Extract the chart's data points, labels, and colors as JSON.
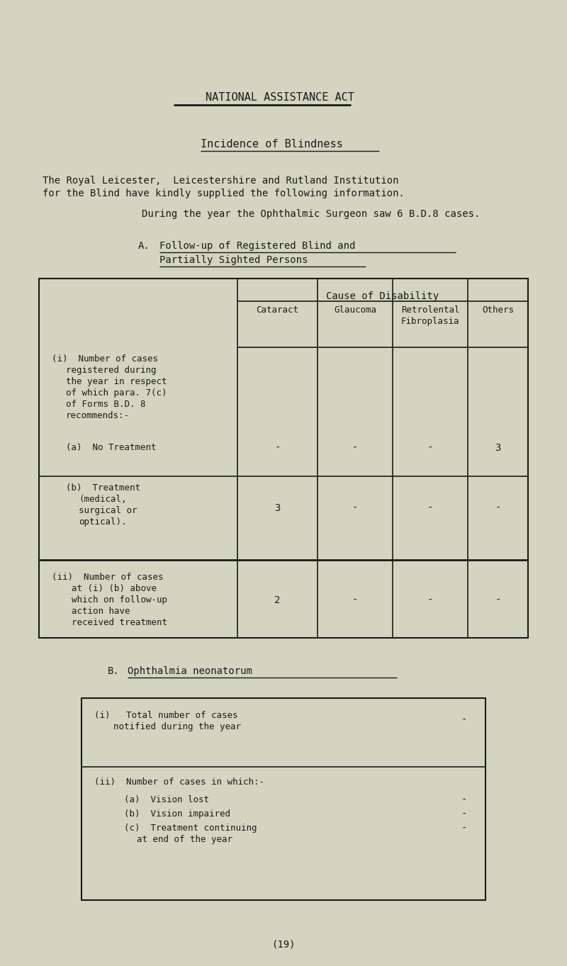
{
  "bg_color": "#d4d5c0",
  "text_color": "#1a1a1a",
  "title1": "NATIONAL ASSISTANCE ACT",
  "title2": "Incidence of Blindness",
  "para1_line1": "The Royal Leicester,  Leicestershire and Rutland Institution",
  "para1_line2": "for the Blind have kindly supplied the following information.",
  "para2": "During the year the Ophthalmic Surgeon saw 6 B.D.8 cases.",
  "section_a_label": "A.",
  "section_a_title1": "Follow-up of Registered Blind and",
  "section_a_title2": "Partially Sighted Persons",
  "section_b_label": "B.",
  "section_b_title": "Ophthalmia neonatorum",
  "page_number": "(19)",
  "font_family": "DejaVu Sans Mono"
}
